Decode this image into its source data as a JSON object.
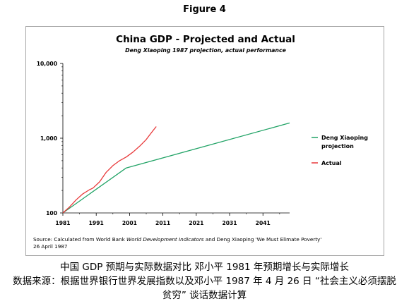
{
  "figure_label": "Figure 4",
  "chart_data": {
    "type": "line",
    "title": "China GDP - Projected and Actual",
    "subtitle": "Deng Xiaoping 1987 projection, actual performance",
    "xlabel": "",
    "ylabel": "",
    "y_scale": "log",
    "xlim": [
      1981,
      2049
    ],
    "ylim": [
      100,
      10000
    ],
    "x_ticks": [
      1981,
      1991,
      2001,
      2011,
      2021,
      2031,
      2041
    ],
    "y_ticks": [
      100,
      1000,
      10000
    ],
    "y_tick_labels": [
      "100",
      "1,000",
      "10,000"
    ],
    "grid": false,
    "legend_position": "right",
    "series": [
      {
        "name": "Deng Xiaoping projection",
        "color": "#21a366",
        "x": [
          1981,
          2000,
          2049
        ],
        "y": [
          100,
          400,
          1600
        ]
      },
      {
        "name": "Actual",
        "color": "#e8393a",
        "x": [
          1981,
          1983,
          1985,
          1987,
          1989,
          1990,
          1992,
          1994,
          1996,
          1998,
          2000,
          2002,
          2004,
          2006,
          2007,
          2008,
          2009
        ],
        "y": [
          100,
          120,
          150,
          180,
          205,
          215,
          260,
          350,
          430,
          500,
          560,
          650,
          780,
          960,
          1100,
          1260,
          1430
        ]
      }
    ],
    "source_prefix": "Source: Calculated from World Bank ",
    "source_italic": "World Development Indicators",
    "source_suffix": " and Deng Xiaoping 'We Must Elimate Poverty'",
    "source_date": "26 April 1987"
  },
  "caption": {
    "line1": "中国 GDP 预期与实际数据对比 邓小平 1981 年预期增长与实际增长",
    "line2": "数据来源：根据世界银行世界发展指数以及邓小平 1987 年 4 月 26 日 “社会主义必须摆脱",
    "line3": "贫穷” 谈话数据计算"
  }
}
